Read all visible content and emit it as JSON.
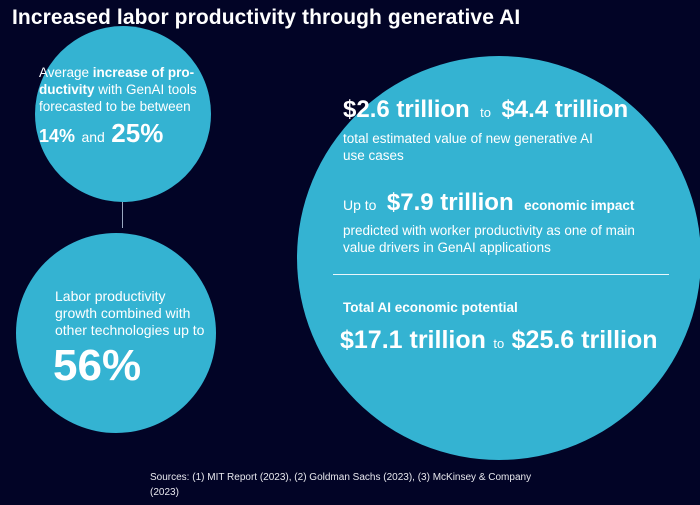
{
  "title": "Increased labor productivity through generative AI",
  "left_top": {
    "line1_pre": "Average ",
    "line1_bold": "increase of pro-",
    "line2_bold": "ductivity",
    "line2_rest": " with GenAI tools",
    "line3": "forecasted to be between",
    "value_low": "14%",
    "and": "and",
    "value_high": "25%"
  },
  "left_bottom": {
    "line1": "Labor productivity",
    "line2": "growth combined with",
    "line3": "other technologies up to",
    "value": "56%"
  },
  "right": {
    "value_low": "$2.6 trillion",
    "to1": "to",
    "value_high": "$4.4 trillion",
    "desc1_line1": "total estimated value of new generative AI",
    "desc1_line2": "use cases",
    "upto": "Up to",
    "impact_value": "$7.9 trillion",
    "impact_label": "economic impact",
    "desc2_line1": "predicted with worker productivity as one of main",
    "desc2_line2": "value drivers in GenAI applications",
    "total_label": "Total AI economic potential",
    "total_low": "$17.1 trillion",
    "to2": "to",
    "total_high": "$25.6 trillion"
  },
  "sources": {
    "line1": "Sources: (1) MIT Report (2023), (2) Goldman Sachs (2023), (3) McKinsey & Company",
    "line2": "(2023)"
  },
  "colors": {
    "background": "#020426",
    "circle": "#34b3d2",
    "text": "#ffffff"
  }
}
